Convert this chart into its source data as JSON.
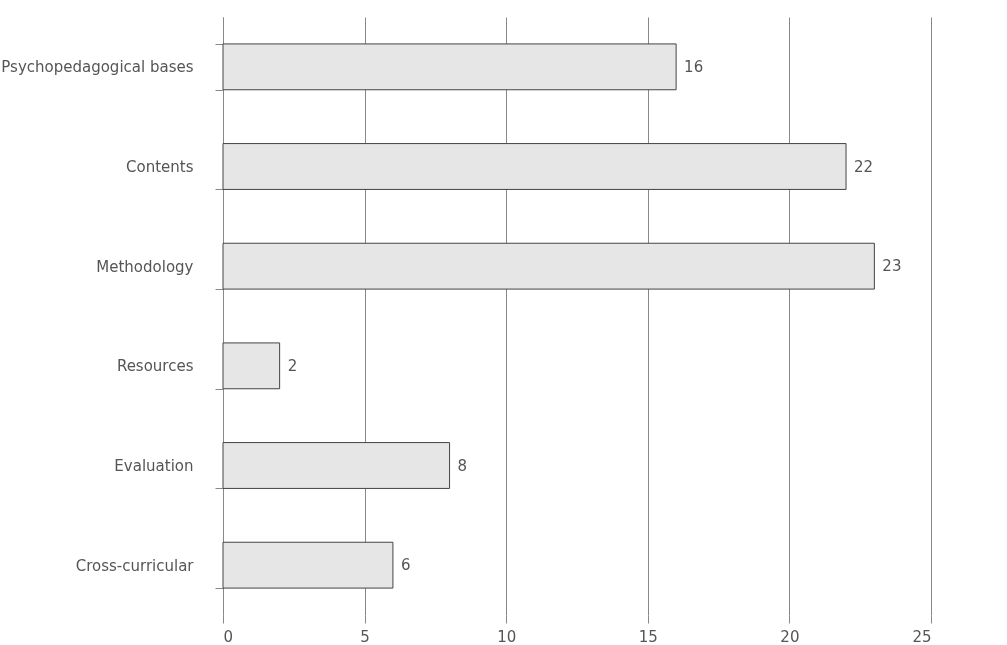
{
  "chart_data": {
    "type": "bar",
    "orientation": "horizontal",
    "categories": [
      "Psychopedagogical bases",
      "Contents",
      "Methodology",
      "Resources",
      "Evaluation",
      "Cross-curricular"
    ],
    "values": [
      16,
      22,
      23,
      2,
      8,
      6
    ],
    "color": "#e6e6e6",
    "xlim": [
      0,
      25
    ],
    "xticks": [
      0,
      5,
      10,
      15,
      20,
      25
    ],
    "grid": "x",
    "data_labels": true
  }
}
